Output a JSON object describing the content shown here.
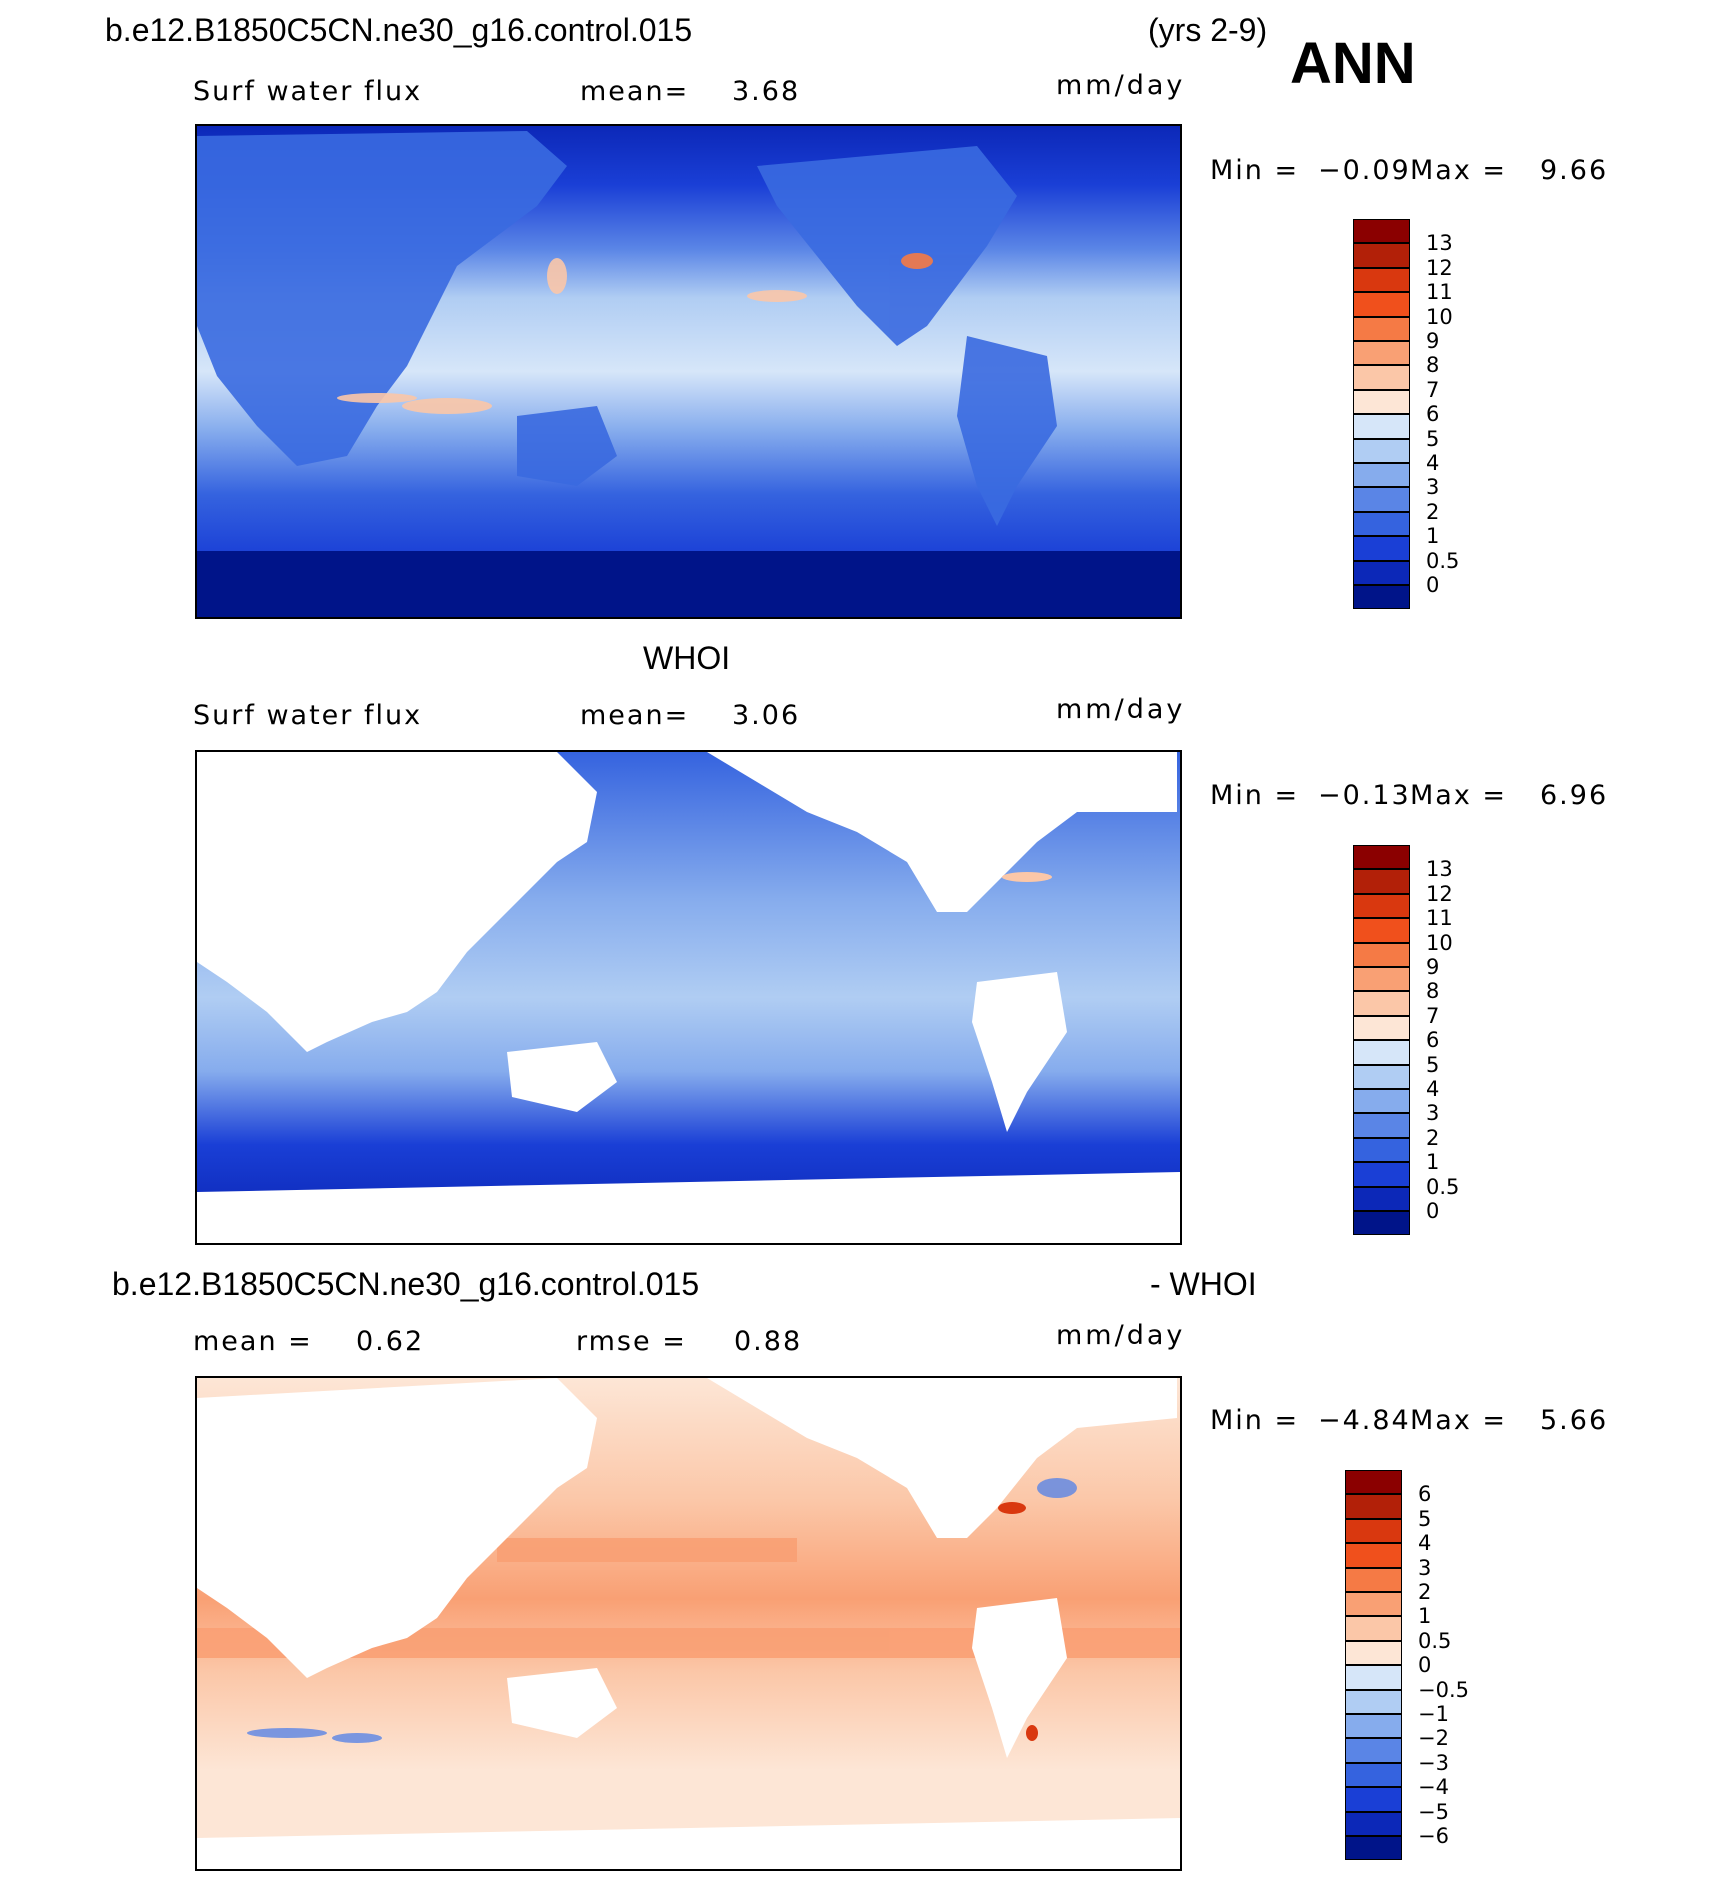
{
  "header": {
    "case_title": "b.e12.B1850C5CN.ne30_g16.control.015",
    "years": "(yrs 2-9)",
    "season": "ANN"
  },
  "panel_top": {
    "variable": "Surf water flux",
    "mean_label": "mean=",
    "mean_value": "3.68",
    "units": "mm/day",
    "min_label": "Min =",
    "min_value": "−0.09",
    "max_label": "Max =",
    "max_value": "9.66"
  },
  "panel_mid": {
    "title": "WHOI",
    "variable": "Surf water flux",
    "mean_label": "mean=",
    "mean_value": "3.06",
    "units": "mm/day",
    "min_label": "Min =",
    "min_value": "−0.13",
    "max_label": "Max =",
    "max_value": "6.96"
  },
  "panel_bot": {
    "title_left": "b.e12.B1850C5CN.ne30_g16.control.015",
    "title_right": "- WHOI",
    "mean_label": "mean =",
    "mean_value": "0.62",
    "rmse_label": "rmse =",
    "rmse_value": "0.88",
    "units": "mm/day",
    "min_label": "Min =",
    "min_value": "−4.84",
    "max_label": "Max =",
    "max_value": "5.66"
  },
  "colorbar_abs": {
    "labels": [
      "13",
      "12",
      "11",
      "10",
      "9",
      "8",
      "7",
      "6",
      "5",
      "4",
      "3",
      "2",
      "1",
      "0.5",
      "0"
    ],
    "colors": [
      "#8b0000",
      "#b22008",
      "#d9380f",
      "#f0501c",
      "#f57a45",
      "#f9a074",
      "#fbc7a8",
      "#fde6d6",
      "#d6e6f9",
      "#b0cdf3",
      "#86aced",
      "#5a85e6",
      "#3563df",
      "#1a3fd6",
      "#0c28b8",
      "#001489"
    ]
  },
  "colorbar_diff": {
    "labels": [
      "6",
      "5",
      "4",
      "3",
      "2",
      "1",
      "0.5",
      "0",
      "−0.5",
      "−1",
      "−2",
      "−3",
      "−4",
      "−5",
      "−6"
    ],
    "colors": [
      "#8b0000",
      "#b22008",
      "#d9380f",
      "#f0501c",
      "#f57a45",
      "#f9a074",
      "#fbc7a8",
      "#fde6d6",
      "#d6e6f9",
      "#b0cdf3",
      "#86aced",
      "#5a85e6",
      "#3563df",
      "#1a3fd6",
      "#0c28b8",
      "#001489"
    ]
  }
}
